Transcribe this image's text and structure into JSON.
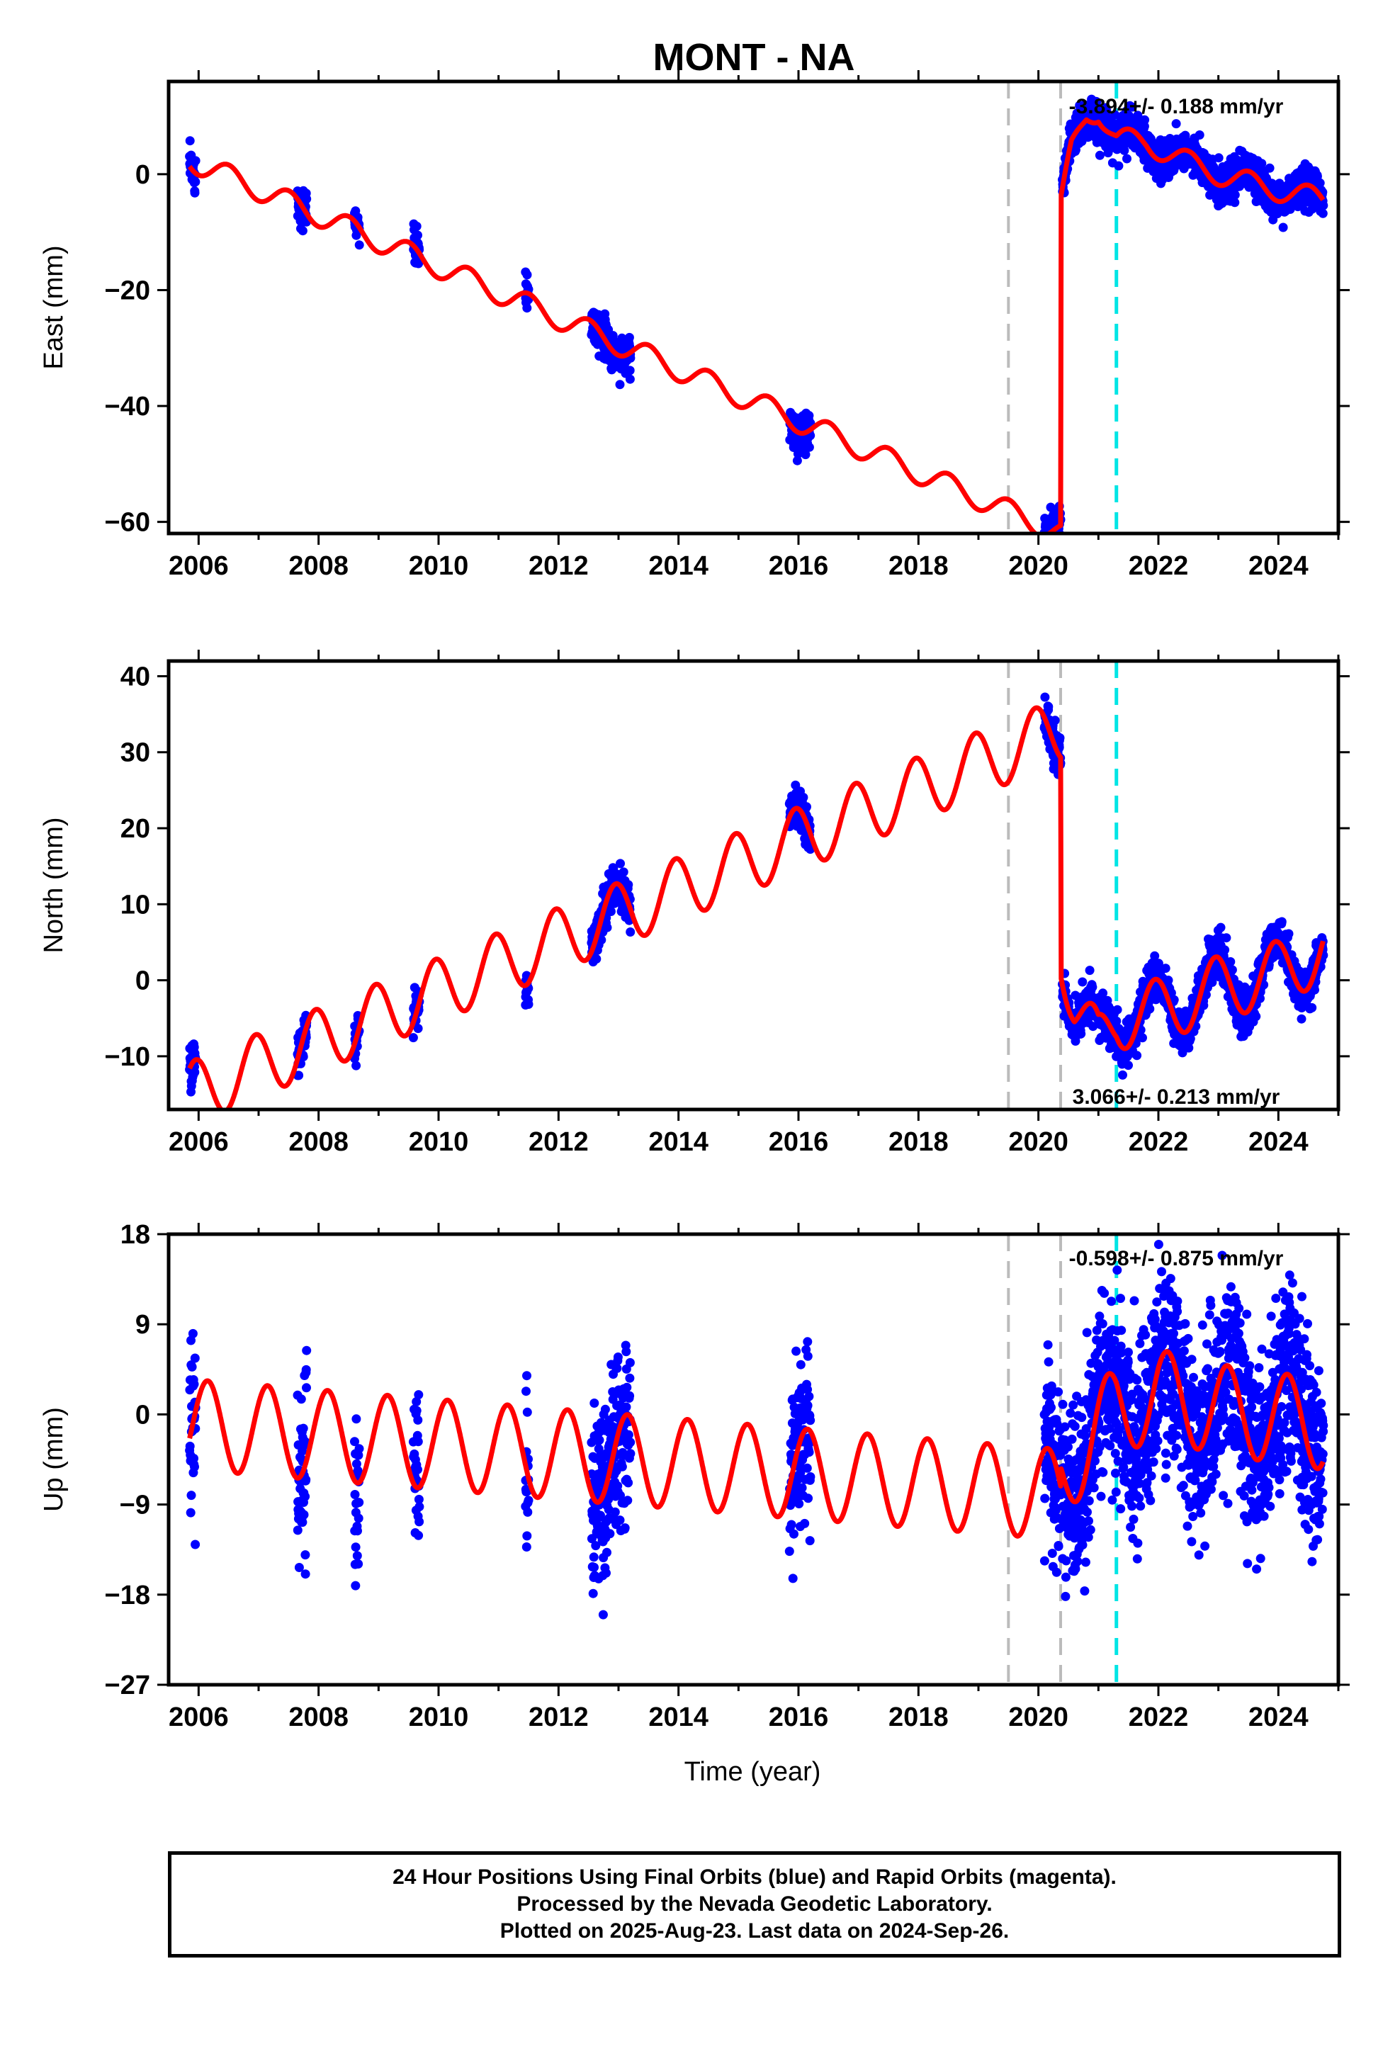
{
  "figure": {
    "title": "MONT - NA",
    "xlabel": "Time (year)",
    "footer": [
      "24 Hour Positions Using Final Orbits (blue) and Rapid Orbits (magenta).",
      "Processed by the Nevada Geodetic Laboratory.",
      "Plotted on 2025-Aug-23. Last data on 2024-Sep-26."
    ]
  },
  "chart_data": [
    {
      "type": "scatter",
      "component": "East",
      "ylabel": "East (mm)",
      "xlim": [
        2005.5,
        2025.0
      ],
      "ylim": [
        -62,
        16
      ],
      "xticks": [
        2006,
        2008,
        2010,
        2012,
        2014,
        2016,
        2018,
        2020,
        2022,
        2024
      ],
      "yticks": [
        -60,
        -40,
        -20,
        0
      ],
      "rate_label": "-3.894+/- 0.188 mm/yr",
      "colors": {
        "points": "#0000ff",
        "model": "#ff0000",
        "event_gray": "#bbbbbb",
        "event_cyan": "#00e5e5"
      },
      "events_gray": [
        2019.5,
        2020.37
      ],
      "events_cyan": [
        2021.3
      ],
      "data_segments": [
        [
          2005.85,
          2005.95
        ],
        [
          2007.65,
          2007.8
        ],
        [
          2008.6,
          2008.68
        ],
        [
          2009.58,
          2009.68
        ],
        [
          2011.45,
          2011.5
        ],
        [
          2012.55,
          2013.2
        ],
        [
          2015.85,
          2016.2
        ],
        [
          2020.1,
          2020.37
        ],
        [
          2020.4,
          2024.75
        ]
      ],
      "model_nodes": [
        [
          2005.85,
          2.5
        ],
        [
          2020.37,
          -62.0
        ],
        [
          2020.38,
          -5.0
        ],
        [
          2020.55,
          4.0
        ],
        [
          2020.8,
          10.0
        ],
        [
          2021.0,
          11.0
        ],
        [
          2021.3,
          6.0
        ],
        [
          2021.8,
          5.5
        ],
        [
          2022.5,
          2.0
        ],
        [
          2023.3,
          -1.0
        ],
        [
          2024.75,
          -4.5
        ]
      ],
      "seasonal": {
        "amp": 2.0,
        "phase": 0.75
      },
      "noise": 1.6
    },
    {
      "type": "scatter",
      "component": "North",
      "ylabel": "North (mm)",
      "xlim": [
        2005.5,
        2025.0
      ],
      "ylim": [
        -17,
        42
      ],
      "xticks": [
        2006,
        2008,
        2010,
        2012,
        2014,
        2016,
        2018,
        2020,
        2022,
        2024
      ],
      "yticks": [
        -10,
        0,
        10,
        20,
        30,
        40
      ],
      "rate_label": "3.066+/- 0.213 mm/yr",
      "colors": {
        "points": "#0000ff",
        "model": "#ff0000",
        "event_gray": "#bbbbbb",
        "event_cyan": "#00e5e5"
      },
      "events_gray": [
        2019.5,
        2020.37
      ],
      "events_cyan": [
        2021.3
      ],
      "data_segments": [
        [
          2005.85,
          2005.95
        ],
        [
          2007.65,
          2007.8
        ],
        [
          2008.6,
          2008.68
        ],
        [
          2009.58,
          2009.68
        ],
        [
          2011.45,
          2011.5
        ],
        [
          2012.55,
          2013.2
        ],
        [
          2015.85,
          2016.2
        ],
        [
          2020.1,
          2020.37
        ],
        [
          2020.4,
          2024.75
        ]
      ],
      "model_nodes": [
        [
          2005.85,
          -15.0
        ],
        [
          2020.37,
          33.0
        ],
        [
          2020.38,
          4.0
        ],
        [
          2020.6,
          -3.0
        ],
        [
          2021.0,
          -8.5
        ],
        [
          2021.3,
          -5.0
        ],
        [
          2022.0,
          -4.0
        ],
        [
          2023.0,
          -1.0
        ],
        [
          2024.0,
          1.0
        ],
        [
          2024.75,
          4.0
        ]
      ],
      "seasonal": {
        "amp": 4.2,
        "phase": 0.3
      },
      "noise": 1.3
    },
    {
      "type": "scatter",
      "component": "Up",
      "ylabel": "Up (mm)",
      "xlim": [
        2005.5,
        2025.0
      ],
      "ylim": [
        -27,
        18
      ],
      "xticks": [
        2006,
        2008,
        2010,
        2012,
        2014,
        2016,
        2018,
        2020,
        2022,
        2024
      ],
      "yticks": [
        -27,
        -18,
        -9,
        0,
        9,
        18
      ],
      "rate_label": "-0.598+/- 0.875 mm/yr",
      "colors": {
        "points": "#0000ff",
        "model": "#ff0000",
        "event_gray": "#bbbbbb",
        "event_cyan": "#00e5e5"
      },
      "events_gray": [
        2019.5,
        2020.37
      ],
      "events_cyan": [
        2021.3
      ],
      "data_segments": [
        [
          2005.85,
          2005.95
        ],
        [
          2007.65,
          2007.8
        ],
        [
          2008.6,
          2008.68
        ],
        [
          2009.58,
          2009.68
        ],
        [
          2011.45,
          2011.5
        ],
        [
          2012.55,
          2013.2
        ],
        [
          2015.85,
          2016.2
        ],
        [
          2020.1,
          2020.37
        ],
        [
          2020.4,
          2024.75
        ]
      ],
      "model_nodes": [
        [
          2005.85,
          -1.0
        ],
        [
          2020.37,
          -8.0
        ],
        [
          2020.38,
          -6.0
        ],
        [
          2021.3,
          0.5
        ],
        [
          2022.0,
          2.0
        ],
        [
          2023.0,
          0.5
        ],
        [
          2024.75,
          -1.0
        ]
      ],
      "seasonal": {
        "amp": 4.5,
        "phase": 0.1
      },
      "noise": 4.5
    }
  ]
}
